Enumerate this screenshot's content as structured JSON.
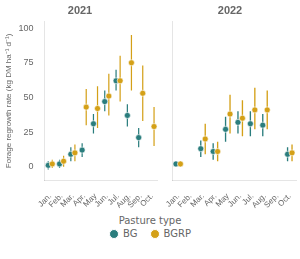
{
  "chart_data": [
    {
      "type": "scatter",
      "title": "2021",
      "ylabel": "Forage regrowth rate (kg DM ha⁻¹ d⁻¹)",
      "categories": [
        "Jan.",
        "Feb.",
        "Mar.",
        "Apr.",
        "May",
        "Jun.",
        "Jul.",
        "Aug.",
        "Sep.",
        "Oct."
      ],
      "series": [
        {
          "name": "BG",
          "color": "#2a7d7d",
          "marker": "circle",
          "values": [
            1,
            2,
            9,
            12,
            31,
            47,
            62,
            37,
            21,
            null
          ],
          "lo": [
            -2,
            -1,
            4,
            7,
            24,
            40,
            55,
            29,
            14,
            null
          ],
          "hi": [
            4,
            5,
            14,
            17,
            38,
            55,
            70,
            45,
            28,
            null
          ]
        },
        {
          "name": "BGRP",
          "color": "#d4a017",
          "marker": "circle",
          "values": [
            2,
            4,
            10,
            43,
            42,
            51,
            62,
            75,
            53,
            29
          ],
          "lo": [
            -1,
            0,
            4,
            30,
            28,
            37,
            47,
            55,
            33,
            15
          ],
          "hi": [
            5,
            8,
            16,
            56,
            58,
            67,
            80,
            95,
            73,
            43
          ]
        }
      ],
      "ylim": [
        -10,
        105
      ],
      "yticks": [
        0,
        25,
        50,
        75,
        100
      ],
      "grid": false,
      "legend": "bottom",
      "legend_title": "Pasture type"
    },
    {
      "type": "scatter",
      "title": "2022",
      "categories": [
        "Jan.",
        "Feb.",
        "Mar.",
        "Apr.",
        "May",
        "Jun.",
        "Jul.",
        "Aug.",
        "Sep.",
        "Oct."
      ],
      "series": [
        {
          "name": "BG",
          "color": "#2a7d7d",
          "marker": "circle",
          "values": [
            2,
            null,
            13,
            11,
            27,
            32,
            31,
            30,
            null,
            9
          ],
          "lo": [
            0,
            null,
            7,
            5,
            18,
            24,
            22,
            22,
            null,
            4
          ],
          "hi": [
            4,
            null,
            19,
            17,
            36,
            40,
            40,
            38,
            null,
            14
          ]
        },
        {
          "name": "BGRP",
          "color": "#d4a017",
          "marker": "circle",
          "values": [
            2,
            null,
            20,
            11,
            38,
            35,
            41,
            41,
            null,
            10
          ],
          "lo": [
            0,
            null,
            9,
            4,
            24,
            22,
            27,
            27,
            null,
            4
          ],
          "hi": [
            4,
            null,
            31,
            18,
            52,
            48,
            57,
            55,
            null,
            16
          ]
        }
      ],
      "ylim": [
        -10,
        105
      ],
      "yticks": [
        0,
        25,
        50,
        75,
        100
      ],
      "grid": false,
      "tick_labels": "x"
    }
  ]
}
